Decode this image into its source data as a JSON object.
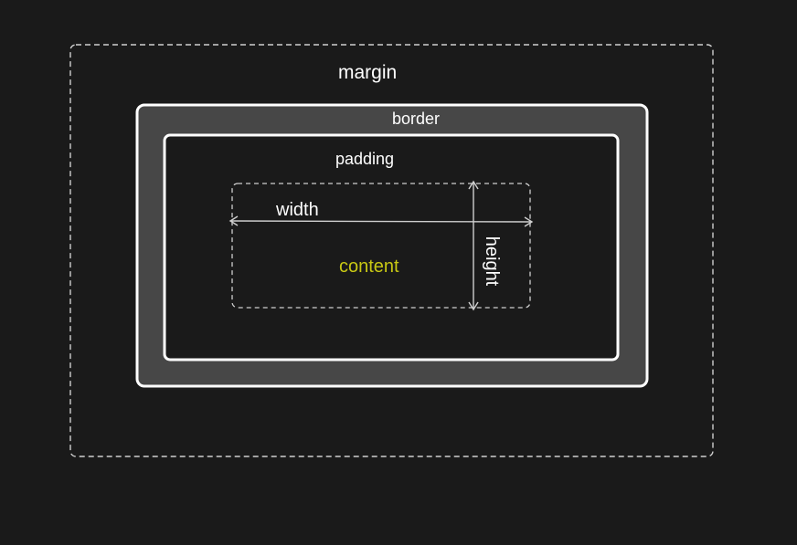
{
  "diagram": {
    "labels": {
      "margin": "margin",
      "border": "border",
      "padding": "padding",
      "width": "width",
      "content": "content",
      "height": "height"
    },
    "colors": {
      "background": "#1a1a1a",
      "border_fill": "#474747",
      "stroke": "#ffffff",
      "dashed_stroke": "#cfcfcf",
      "arrow": "#cfcfcf",
      "content_text": "#c8c814"
    }
  }
}
